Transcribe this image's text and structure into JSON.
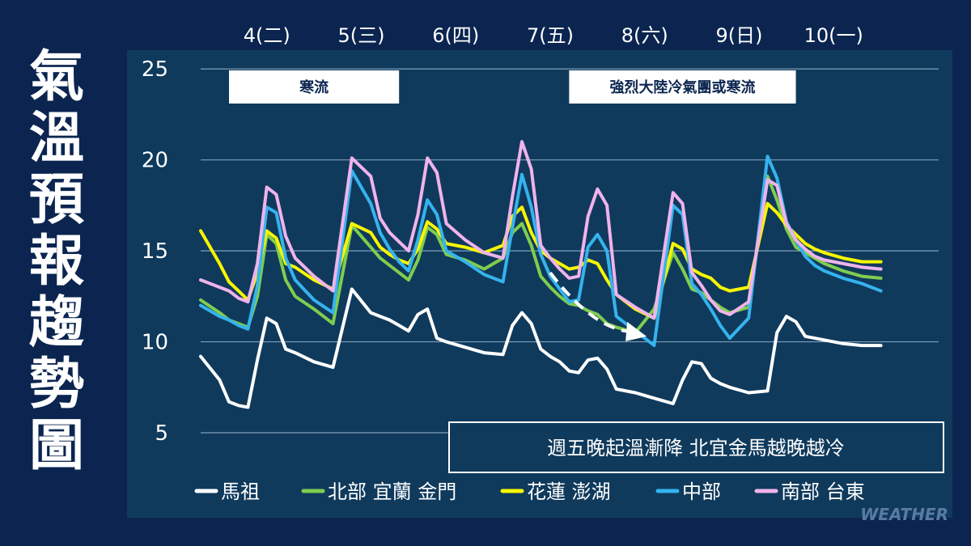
{
  "title_chars": [
    "氣",
    "溫",
    "預",
    "報",
    "趨",
    "勢",
    "圖"
  ],
  "watermark": "WEATHER",
  "colors": {
    "page_bg": "#0b2550",
    "plot_bg": "#0f3a5c",
    "grid": "#7fa0b8"
  },
  "chart_data": {
    "type": "line",
    "title": "氣溫預報趨勢圖",
    "days": [
      "4(二)",
      "5(三)",
      "6(四)",
      "7(五)",
      "8(六)",
      "9(日)",
      "10(一)"
    ],
    "ylim": [
      3,
      25.5
    ],
    "yticks": [
      25,
      20,
      15,
      10,
      5
    ],
    "xlim": [
      0,
      37
    ],
    "grid": true,
    "legend_position": "bottom",
    "banners": [
      {
        "text": "寒流",
        "x0": 1.5,
        "x1": 10.5
      },
      {
        "text": "強烈大陸冷氣團或寒流",
        "x0": 19.5,
        "x1": 31.5
      }
    ],
    "annotation": "週五晚起溫漸降  北宜金馬越晚越冷",
    "trend_arrow": {
      "from": [
        18.5,
        13.8
      ],
      "to": [
        23.6,
        10.3
      ]
    },
    "series": [
      {
        "name": "馬祖",
        "color": "#ffffff",
        "x": [
          0,
          1,
          1.5,
          2,
          2.5,
          3,
          3.5,
          4,
          4.5,
          5,
          6,
          7,
          8,
          9,
          9.5,
          10,
          10.5,
          11,
          11.5,
          12,
          12.5,
          13,
          14,
          15,
          16,
          16.5,
          17,
          17.5,
          18,
          18.5,
          19,
          19.5,
          20,
          20.5,
          21,
          21.5,
          22,
          23,
          24,
          25,
          25.5,
          26,
          26.5,
          27,
          27.5,
          28,
          29,
          30,
          30.5,
          31,
          31.5,
          32,
          32.5,
          33,
          34,
          35,
          36
        ],
        "y": [
          9.2,
          7.9,
          6.7,
          6.5,
          6.4,
          9.0,
          11.3,
          11.0,
          9.6,
          9.4,
          8.9,
          8.6,
          12.9,
          11.6,
          11.4,
          11.2,
          10.9,
          10.6,
          11.5,
          11.8,
          10.2,
          10.0,
          9.7,
          9.4,
          9.3,
          10.9,
          11.6,
          11.0,
          9.6,
          9.2,
          8.9,
          8.4,
          8.3,
          9.0,
          9.1,
          8.5,
          7.4,
          7.2,
          6.9,
          6.6,
          7.9,
          8.9,
          8.8,
          8.0,
          7.7,
          7.5,
          7.2,
          7.3,
          10.5,
          11.4,
          11.1,
          10.3,
          10.2,
          10.1,
          9.9,
          9.8,
          9.8
        ]
      },
      {
        "name": "北部 宜蘭 金門",
        "color": "#7fcd4e",
        "x": [
          0,
          1,
          1.5,
          2,
          2.5,
          3,
          3.5,
          4,
          4.5,
          5,
          6,
          7,
          8,
          9,
          9.5,
          10,
          10.5,
          11,
          11.5,
          12,
          12.5,
          13,
          14,
          15,
          16,
          16.5,
          17,
          17.5,
          18,
          18.5,
          19,
          19.5,
          20,
          20.5,
          21,
          21.5,
          22,
          23,
          24,
          25,
          25.5,
          26,
          26.5,
          27,
          27.5,
          28,
          29,
          30,
          30.5,
          31,
          31.5,
          32,
          32.5,
          33,
          34,
          35,
          36
        ],
        "y": [
          12.3,
          11.6,
          11.2,
          11.0,
          10.8,
          12.5,
          15.9,
          15.4,
          13.4,
          12.5,
          11.8,
          11.0,
          16.4,
          15.2,
          14.6,
          14.2,
          13.8,
          13.4,
          14.5,
          16.3,
          15.9,
          14.8,
          14.5,
          14.0,
          14.6,
          16.0,
          16.5,
          15.3,
          13.6,
          13.0,
          12.5,
          12.1,
          12.0,
          11.7,
          11.5,
          11.0,
          10.8,
          10.5,
          11.8,
          14.9,
          14.0,
          12.9,
          12.7,
          12.3,
          11.9,
          11.6,
          11.9,
          19.1,
          17.8,
          16.2,
          15.2,
          14.9,
          14.6,
          14.3,
          13.9,
          13.6,
          13.5
        ]
      },
      {
        "name": "花蓮 澎湖",
        "color": "#f6f600",
        "x": [
          0,
          1,
          1.5,
          2,
          2.5,
          3,
          3.5,
          4,
          4.5,
          5,
          6,
          7,
          8,
          9,
          9.5,
          10,
          10.5,
          11,
          11.5,
          12,
          12.5,
          13,
          14,
          15,
          16,
          16.5,
          17,
          17.5,
          18,
          18.5,
          19,
          19.5,
          20,
          20.5,
          21,
          21.5,
          22,
          23,
          24,
          25,
          25.5,
          26,
          26.5,
          27,
          27.5,
          28,
          29,
          30,
          30.5,
          31,
          31.5,
          32,
          32.5,
          33,
          34,
          35,
          36
        ],
        "y": [
          16.1,
          14.3,
          13.3,
          12.8,
          12.3,
          13.8,
          16.1,
          15.7,
          14.3,
          14.1,
          13.4,
          12.9,
          16.5,
          16.0,
          15.2,
          14.8,
          14.5,
          14.3,
          15.1,
          16.6,
          16.2,
          15.4,
          15.2,
          14.9,
          15.3,
          16.9,
          17.4,
          16.0,
          15.0,
          14.6,
          14.3,
          14.0,
          14.1,
          14.5,
          14.3,
          13.4,
          12.6,
          11.8,
          11.3,
          15.4,
          15.1,
          14.0,
          13.7,
          13.5,
          13.0,
          12.8,
          13.0,
          17.6,
          17.1,
          16.4,
          15.9,
          15.4,
          15.1,
          14.9,
          14.6,
          14.4,
          14.4
        ]
      },
      {
        "name": "中部",
        "color": "#35b3ee",
        "x": [
          0,
          1,
          1.5,
          2,
          2.5,
          3,
          3.5,
          4,
          4.5,
          5,
          6,
          7,
          8,
          9,
          9.5,
          10,
          10.5,
          11,
          11.5,
          12,
          12.5,
          13,
          14,
          15,
          16,
          16.5,
          17,
          17.5,
          18,
          18.5,
          19,
          19.5,
          20,
          20.5,
          21,
          21.5,
          22,
          23,
          24,
          25,
          25.5,
          26,
          26.5,
          27,
          27.5,
          28,
          29,
          30,
          30.5,
          31,
          31.5,
          32,
          32.5,
          33,
          34,
          35,
          36
        ],
        "y": [
          12.0,
          11.4,
          11.2,
          10.9,
          10.7,
          13.1,
          17.4,
          17.1,
          14.6,
          13.4,
          12.3,
          11.6,
          19.4,
          17.6,
          16.0,
          15.1,
          14.4,
          13.9,
          15.6,
          17.8,
          17.0,
          15.0,
          14.4,
          13.7,
          13.3,
          16.3,
          19.2,
          17.4,
          14.8,
          13.6,
          12.9,
          12.2,
          12.3,
          15.2,
          15.9,
          15.0,
          11.4,
          10.6,
          9.8,
          17.5,
          17.0,
          13.2,
          12.6,
          11.8,
          10.9,
          10.2,
          11.3,
          20.2,
          19.0,
          16.6,
          15.6,
          14.7,
          14.2,
          13.9,
          13.5,
          13.2,
          12.8
        ]
      },
      {
        "name": "南部 台東",
        "color": "#f0b3ec",
        "x": [
          0,
          1,
          1.5,
          2,
          2.5,
          3,
          3.5,
          4,
          4.5,
          5,
          6,
          7,
          8,
          9,
          9.5,
          10,
          10.5,
          11,
          11.5,
          12,
          12.5,
          13,
          14,
          15,
          16,
          16.5,
          17,
          17.5,
          18,
          18.5,
          19,
          19.5,
          20,
          20.5,
          21,
          21.5,
          22,
          23,
          24,
          25,
          25.5,
          26,
          26.5,
          27,
          27.5,
          28,
          29,
          30,
          30.5,
          31,
          31.5,
          32,
          32.5,
          33,
          34,
          35,
          36
        ],
        "y": [
          13.4,
          13.0,
          12.8,
          12.4,
          12.2,
          14.3,
          18.5,
          18.1,
          15.8,
          14.6,
          13.6,
          12.8,
          20.1,
          19.1,
          16.8,
          16.0,
          15.5,
          15.0,
          17.0,
          20.1,
          19.3,
          16.5,
          15.6,
          14.9,
          14.6,
          18.0,
          21.0,
          19.5,
          15.3,
          14.6,
          14.0,
          13.5,
          13.6,
          16.9,
          18.4,
          17.5,
          12.6,
          11.9,
          11.3,
          18.2,
          17.6,
          13.8,
          13.1,
          12.3,
          11.7,
          11.5,
          12.2,
          18.9,
          18.6,
          16.5,
          15.6,
          15.1,
          14.7,
          14.5,
          14.3,
          14.1,
          14.0
        ]
      }
    ]
  }
}
